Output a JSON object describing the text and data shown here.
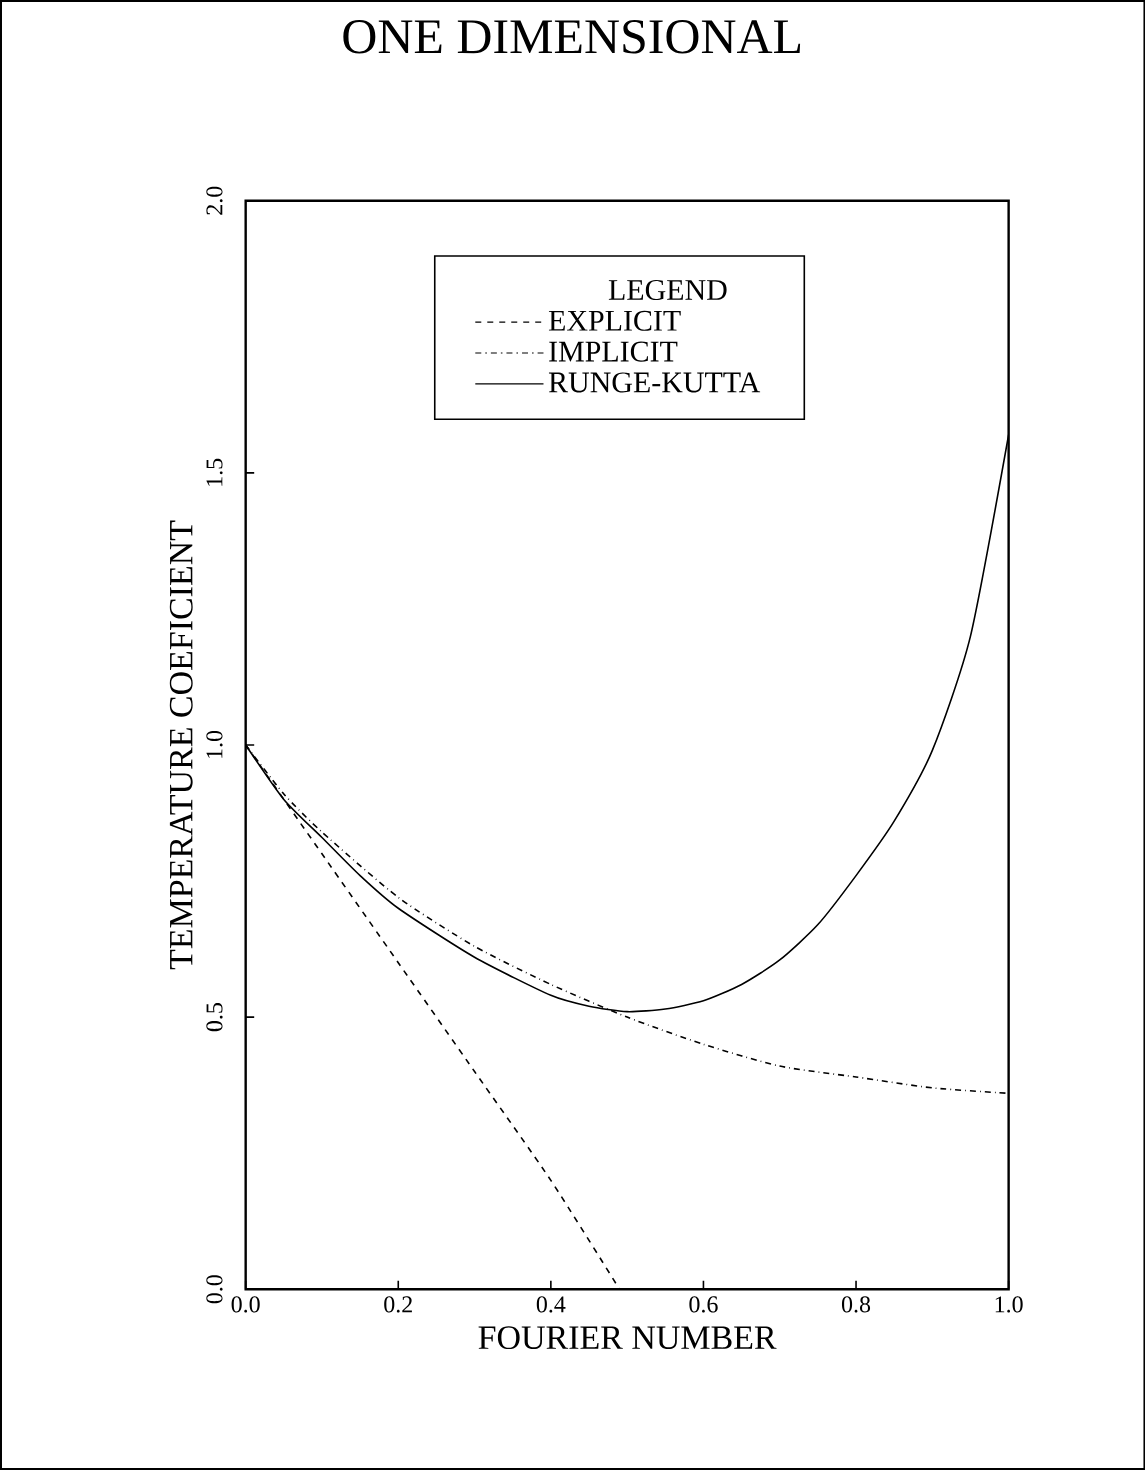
{
  "chart_data": {
    "type": "line",
    "title": "ONE DIMENSIONAL",
    "xlabel": "FOURIER NUMBER",
    "ylabel": "TEMPERATURE COEFICIENT",
    "legend_title": "LEGEND",
    "legend": "top",
    "grid": false,
    "marker": "none",
    "xlim": [
      0,
      1
    ],
    "ylim": [
      0,
      2
    ],
    "xticks": [
      {
        "value": 0,
        "label": "0.0"
      },
      {
        "value": 0.2,
        "label": "0.2"
      },
      {
        "value": 0.4,
        "label": "0.4"
      },
      {
        "value": 0.6,
        "label": "0.6"
      },
      {
        "value": 0.8,
        "label": "0.8"
      },
      {
        "value": 1,
        "label": "1.0"
      }
    ],
    "yticks": [
      {
        "value": 0,
        "label": "0.0"
      },
      {
        "value": 0.5,
        "label": "0.5"
      },
      {
        "value": 1,
        "label": "1.0"
      },
      {
        "value": 1.5,
        "label": "1.5"
      },
      {
        "value": 2,
        "label": "2.0"
      }
    ],
    "series": [
      {
        "name": "EXPLICIT",
        "color": "#000000",
        "line_style": "dashed",
        "x": [
          0,
          0.1,
          0.2,
          0.3,
          0.4,
          0.49
        ],
        "values": [
          1,
          0.8,
          0.6,
          0.4,
          0.2,
          0
        ]
      },
      {
        "name": "IMPLICIT",
        "color": "#000000",
        "line_style": "dashdot",
        "x": [
          0,
          0.05,
          0.1,
          0.2,
          0.3,
          0.4,
          0.5,
          0.6,
          0.7,
          0.8,
          0.9,
          1
        ],
        "values": [
          1,
          0.91,
          0.84,
          0.72,
          0.63,
          0.56,
          0.5,
          0.45,
          0.41,
          0.39,
          0.37,
          0.36
        ]
      },
      {
        "name": "RUNGE-KUTTA",
        "color": "#000000",
        "line_style": "solid",
        "x": [
          0,
          0.05,
          0.1,
          0.15,
          0.2,
          0.3,
          0.4,
          0.45,
          0.5,
          0.55,
          0.6,
          0.65,
          0.7,
          0.75,
          0.8,
          0.85,
          0.9,
          0.95,
          1
        ],
        "values": [
          1,
          0.9,
          0.83,
          0.76,
          0.7,
          0.61,
          0.54,
          0.52,
          0.51,
          0.515,
          0.53,
          0.56,
          0.605,
          0.67,
          0.76,
          0.86,
          0.99,
          1.2,
          1.57
        ]
      }
    ]
  }
}
